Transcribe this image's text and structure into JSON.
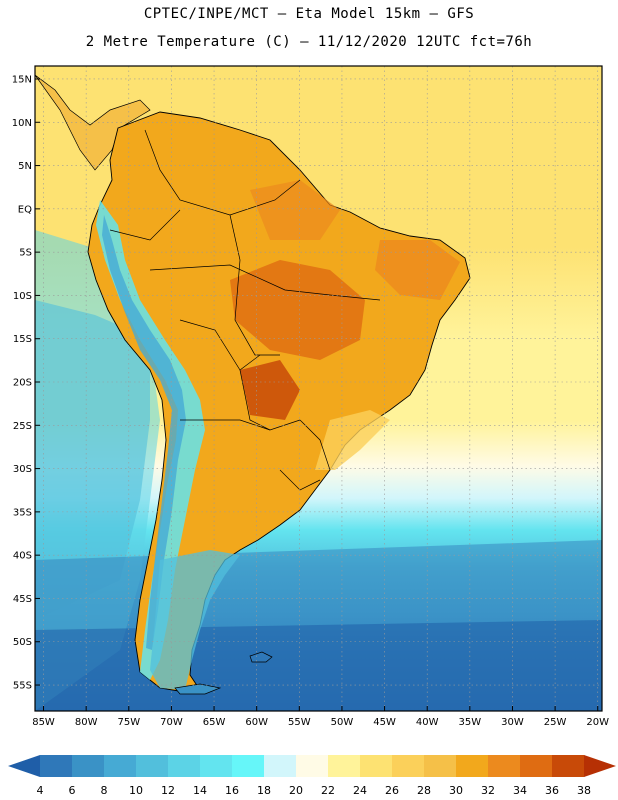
{
  "header": {
    "line1": "CPTEC/INPE/MCT –  Eta Model 15km – GFS",
    "line2": "2 Metre Temperature (C) – 11/12/2020 12UTC fct=76h"
  },
  "map": {
    "lat_labels": [
      "15N",
      "10N",
      "5N",
      "EQ",
      "5S",
      "10S",
      "15S",
      "20S",
      "25S",
      "30S",
      "35S",
      "40S",
      "45S",
      "50S",
      "55S"
    ],
    "lon_labels": [
      "85W",
      "80W",
      "75W",
      "70W",
      "65W",
      "60W",
      "55W",
      "50W",
      "45W",
      "40W",
      "35W",
      "30W",
      "25W",
      "20W"
    ],
    "lat_values": [
      15,
      10,
      5,
      0,
      -5,
      -10,
      -15,
      -20,
      -25,
      -30,
      -35,
      -40,
      -45,
      -50,
      -55
    ],
    "lon_values": [
      -85,
      -80,
      -75,
      -70,
      -65,
      -60,
      -55,
      -50,
      -45,
      -40,
      -35,
      -30,
      -25,
      -20
    ],
    "lon_range": [
      -86,
      -19.5
    ],
    "lat_range": [
      -58,
      16.5
    ]
  },
  "colorbar": {
    "labels": [
      "4",
      "6",
      "8",
      "10",
      "12",
      "14",
      "16",
      "18",
      "20",
      "22",
      "24",
      "26",
      "28",
      "30",
      "32",
      "34",
      "36",
      "38"
    ],
    "colors": [
      "#1f5ea8",
      "#2f78b9",
      "#3a92c6",
      "#46aad4",
      "#52bfdc",
      "#5cd3e6",
      "#63e4ef",
      "#66f6f9",
      "#d2f6fb",
      "#fffbe6",
      "#fff39a",
      "#fde272",
      "#fbd05a",
      "#f5c048",
      "#f2a81c",
      "#ec8a1e",
      "#df6c12",
      "#c84a08",
      "#b63004"
    ]
  }
}
